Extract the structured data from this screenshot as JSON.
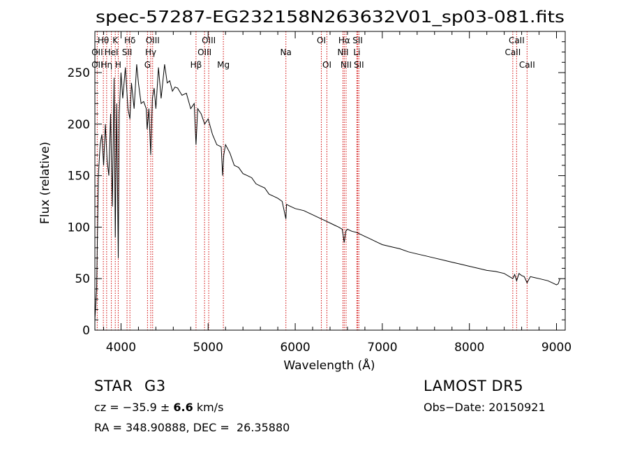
{
  "chart_data": {
    "type": "line",
    "title": "spec-57287-EG232158N263632V01_sp03-081.fits",
    "xlabel": "Wavelength (Å)",
    "ylabel": "Flux (relative)",
    "xlim": [
      3700,
      9100
    ],
    "ylim": [
      0,
      290
    ],
    "xticks": [
      4000,
      5000,
      6000,
      7000,
      8000,
      9000
    ],
    "yticks": [
      0,
      50,
      100,
      150,
      200,
      250
    ],
    "grid": false,
    "series": [
      {
        "color": "#000000",
        "x": [
          3700,
          3720,
          3740,
          3760,
          3780,
          3800,
          3820,
          3840,
          3860,
          3880,
          3900,
          3920,
          3934,
          3950,
          3968,
          3980,
          4000,
          4020,
          4050,
          4080,
          4102,
          4120,
          4150,
          4180,
          4200,
          4230,
          4260,
          4290,
          4300,
          4320,
          4341,
          4360,
          4380,
          4400,
          4430,
          4460,
          4500,
          4530,
          4560,
          4590,
          4620,
          4650,
          4700,
          4750,
          4800,
          4840,
          4861,
          4880,
          4920,
          4960,
          5000,
          5050,
          5100,
          5150,
          5167,
          5180,
          5200,
          5250,
          5300,
          5350,
          5400,
          5450,
          5500,
          5550,
          5600,
          5650,
          5700,
          5750,
          5800,
          5850,
          5893,
          5900,
          5950,
          6000,
          6050,
          6100,
          6150,
          6200,
          6250,
          6300,
          6350,
          6400,
          6450,
          6500,
          6540,
          6563,
          6580,
          6600,
          6650,
          6700,
          6750,
          6800,
          6850,
          6900,
          6950,
          7000,
          7100,
          7200,
          7300,
          7400,
          7500,
          7600,
          7700,
          7800,
          7900,
          8000,
          8100,
          8200,
          8300,
          8400,
          8498,
          8520,
          8542,
          8570,
          8600,
          8630,
          8662,
          8700,
          8750,
          8800,
          8850,
          8900,
          8950,
          9000,
          9020,
          9040
        ],
        "values": [
          10,
          40,
          150,
          180,
          190,
          160,
          200,
          165,
          150,
          210,
          120,
          245,
          90,
          220,
          70,
          210,
          250,
          225,
          255,
          215,
          205,
          240,
          215,
          258,
          240,
          220,
          222,
          215,
          195,
          215,
          170,
          225,
          235,
          215,
          255,
          225,
          258,
          240,
          242,
          232,
          236,
          235,
          228,
          230,
          215,
          220,
          180,
          215,
          210,
          200,
          205,
          190,
          180,
          178,
          150,
          170,
          180,
          172,
          160,
          158,
          152,
          150,
          148,
          142,
          140,
          138,
          132,
          130,
          128,
          125,
          108,
          122,
          120,
          118,
          117,
          116,
          114,
          112,
          110,
          108,
          106,
          104,
          102,
          100,
          98,
          85,
          96,
          98,
          96,
          95,
          93,
          91,
          89,
          87,
          85,
          83,
          81,
          79,
          76,
          74,
          72,
          70,
          68,
          66,
          64,
          62,
          60,
          58,
          57,
          55,
          50,
          54,
          48,
          55,
          53,
          52,
          46,
          52,
          51,
          50,
          49,
          48,
          46,
          44,
          45,
          50
        ]
      }
    ],
    "line_labels": [
      {
        "label": "Hθ",
        "x": 3797,
        "row": 1
      },
      {
        "label": "K",
        "x": 3934,
        "row": 1
      },
      {
        "label": "Hδ",
        "x": 4102,
        "row": 1
      },
      {
        "label": "OIII",
        "x": 4363,
        "row": 1
      },
      {
        "label": "OIII",
        "x": 5007,
        "row": 1
      },
      {
        "label": "OI",
        "x": 6300,
        "row": 1
      },
      {
        "label": "Hα",
        "x": 6563,
        "row": 1
      },
      {
        "label": "SII",
        "x": 6717,
        "row": 1
      },
      {
        "label": "CaII",
        "x": 8542,
        "row": 1
      },
      {
        "label": "OII",
        "x": 3727,
        "row": 2
      },
      {
        "label": "HeI",
        "x": 3889,
        "row": 2
      },
      {
        "label": "SII",
        "x": 4069,
        "row": 2
      },
      {
        "label": "Hγ",
        "x": 4341,
        "row": 2
      },
      {
        "label": "OIII",
        "x": 4959,
        "row": 2
      },
      {
        "label": "Na",
        "x": 5893,
        "row": 2
      },
      {
        "label": "NII",
        "x": 6548,
        "row": 2
      },
      {
        "label": "Li",
        "x": 6708,
        "row": 2
      },
      {
        "label": "CaII",
        "x": 8498,
        "row": 2
      },
      {
        "label": "OII",
        "x": 3727,
        "row": 3
      },
      {
        "label": "Hη",
        "x": 3835,
        "row": 3
      },
      {
        "label": "H",
        "x": 3968,
        "row": 3
      },
      {
        "label": "G",
        "x": 4304,
        "row": 3
      },
      {
        "label": "Hβ",
        "x": 4861,
        "row": 3
      },
      {
        "label": "Mg",
        "x": 5175,
        "row": 3
      },
      {
        "label": "OI",
        "x": 6364,
        "row": 3
      },
      {
        "label": "NII",
        "x": 6584,
        "row": 3
      },
      {
        "label": "SII",
        "x": 6731,
        "row": 3
      },
      {
        "label": "CaII",
        "x": 8662,
        "row": 3
      }
    ],
    "line_positions": [
      3727,
      3797,
      3835,
      3889,
      3934,
      3968,
      4069,
      4102,
      4304,
      4341,
      4363,
      4861,
      4959,
      5007,
      5175,
      5893,
      6300,
      6364,
      6548,
      6563,
      6584,
      6708,
      6717,
      6731,
      8498,
      8542,
      8662
    ]
  },
  "info": {
    "class_label": "STAR",
    "subclass": "G3",
    "survey": "LAMOST DR5",
    "cz_prefix": "cz = −35.9 ± ",
    "cz_error": "6.6",
    "cz_unit": " km/s",
    "obs_date": "Obs−Date: 20150921",
    "coords": "RA = 348.90888, DEC =  26.35880"
  }
}
